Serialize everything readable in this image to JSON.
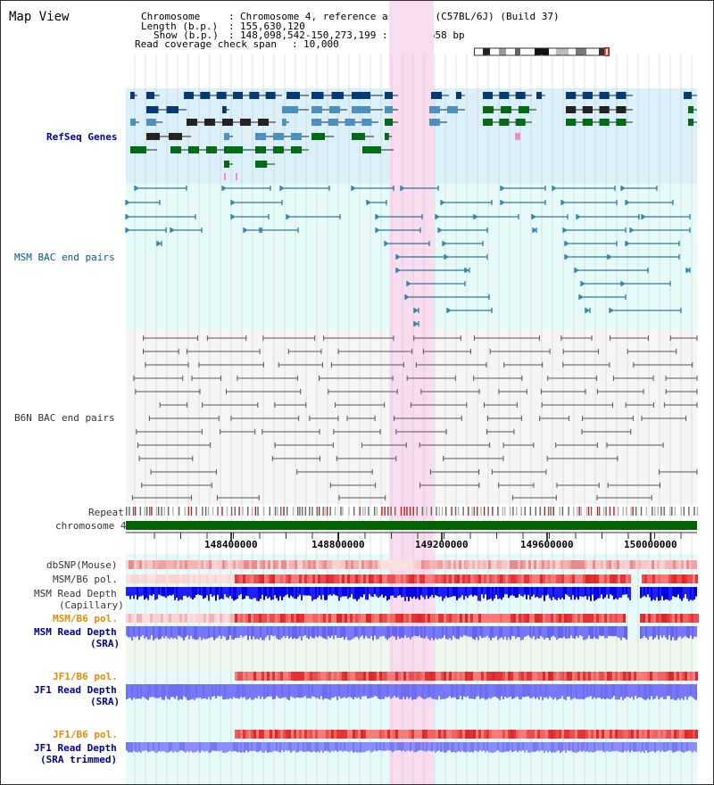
{
  "page_title": "Map View",
  "header": {
    "chromosome_label": "Chromosome",
    "chromosome_value": "Chromosome 4, reference assembly (C57BL/6J) (Build 37)",
    "length_label": "Length (b.p.)",
    "length_value": "155,630,120",
    "show_label": "Show (b.p.)",
    "show_value": "148,098,542-150,273,199 : 2,174,658 bp",
    "span_label": "Read coverage check span",
    "span_value": "10,000"
  },
  "tracks": {
    "refseq": "RefSeq Genes",
    "msm_bac": "MSM BAC end pairs",
    "b6n_bac": "B6N BAC end pairs",
    "repeat": "Repeat",
    "chromosome": "chromosome 4",
    "dbsnp": "dbSNP(Mouse)",
    "msm_b6_pol_1": "MSM/B6 pol.",
    "msm_read_depth_cap_1": "MSM Read Depth",
    "msm_read_depth_cap_2": "(Capillary)",
    "msm_b6_pol_2": "MSM/B6 pol.",
    "msm_read_depth_sra_1": "MSM Read Depth",
    "msm_read_depth_sra_2": "(SRA)",
    "jf1_b6_pol_1": "JF1/B6 pol.",
    "jf1_read_depth_sra_1": "JF1 Read Depth",
    "jf1_read_depth_sra_2": "(SRA)",
    "jf1_b6_pol_2": "JF1/B6 pol.",
    "jf1_read_depth_trim_1": "JF1 Read Depth",
    "jf1_read_depth_trim_2": "(SRA trimmed)"
  },
  "axis_ticks": [
    "148400000",
    "148800000",
    "149200000",
    "149600000",
    "150000000"
  ],
  "colors": {
    "refseq_bg": "#dcf0fa",
    "msm_bac_bg": "#e6fafa",
    "b6n_bac_bg": "#f5f5f5",
    "highlight": "#fadcf0",
    "chromosome_bar": "#006400",
    "depth_dark": "#0000e6",
    "depth_light": "#7878ff",
    "pol_red": "#e63232"
  }
}
